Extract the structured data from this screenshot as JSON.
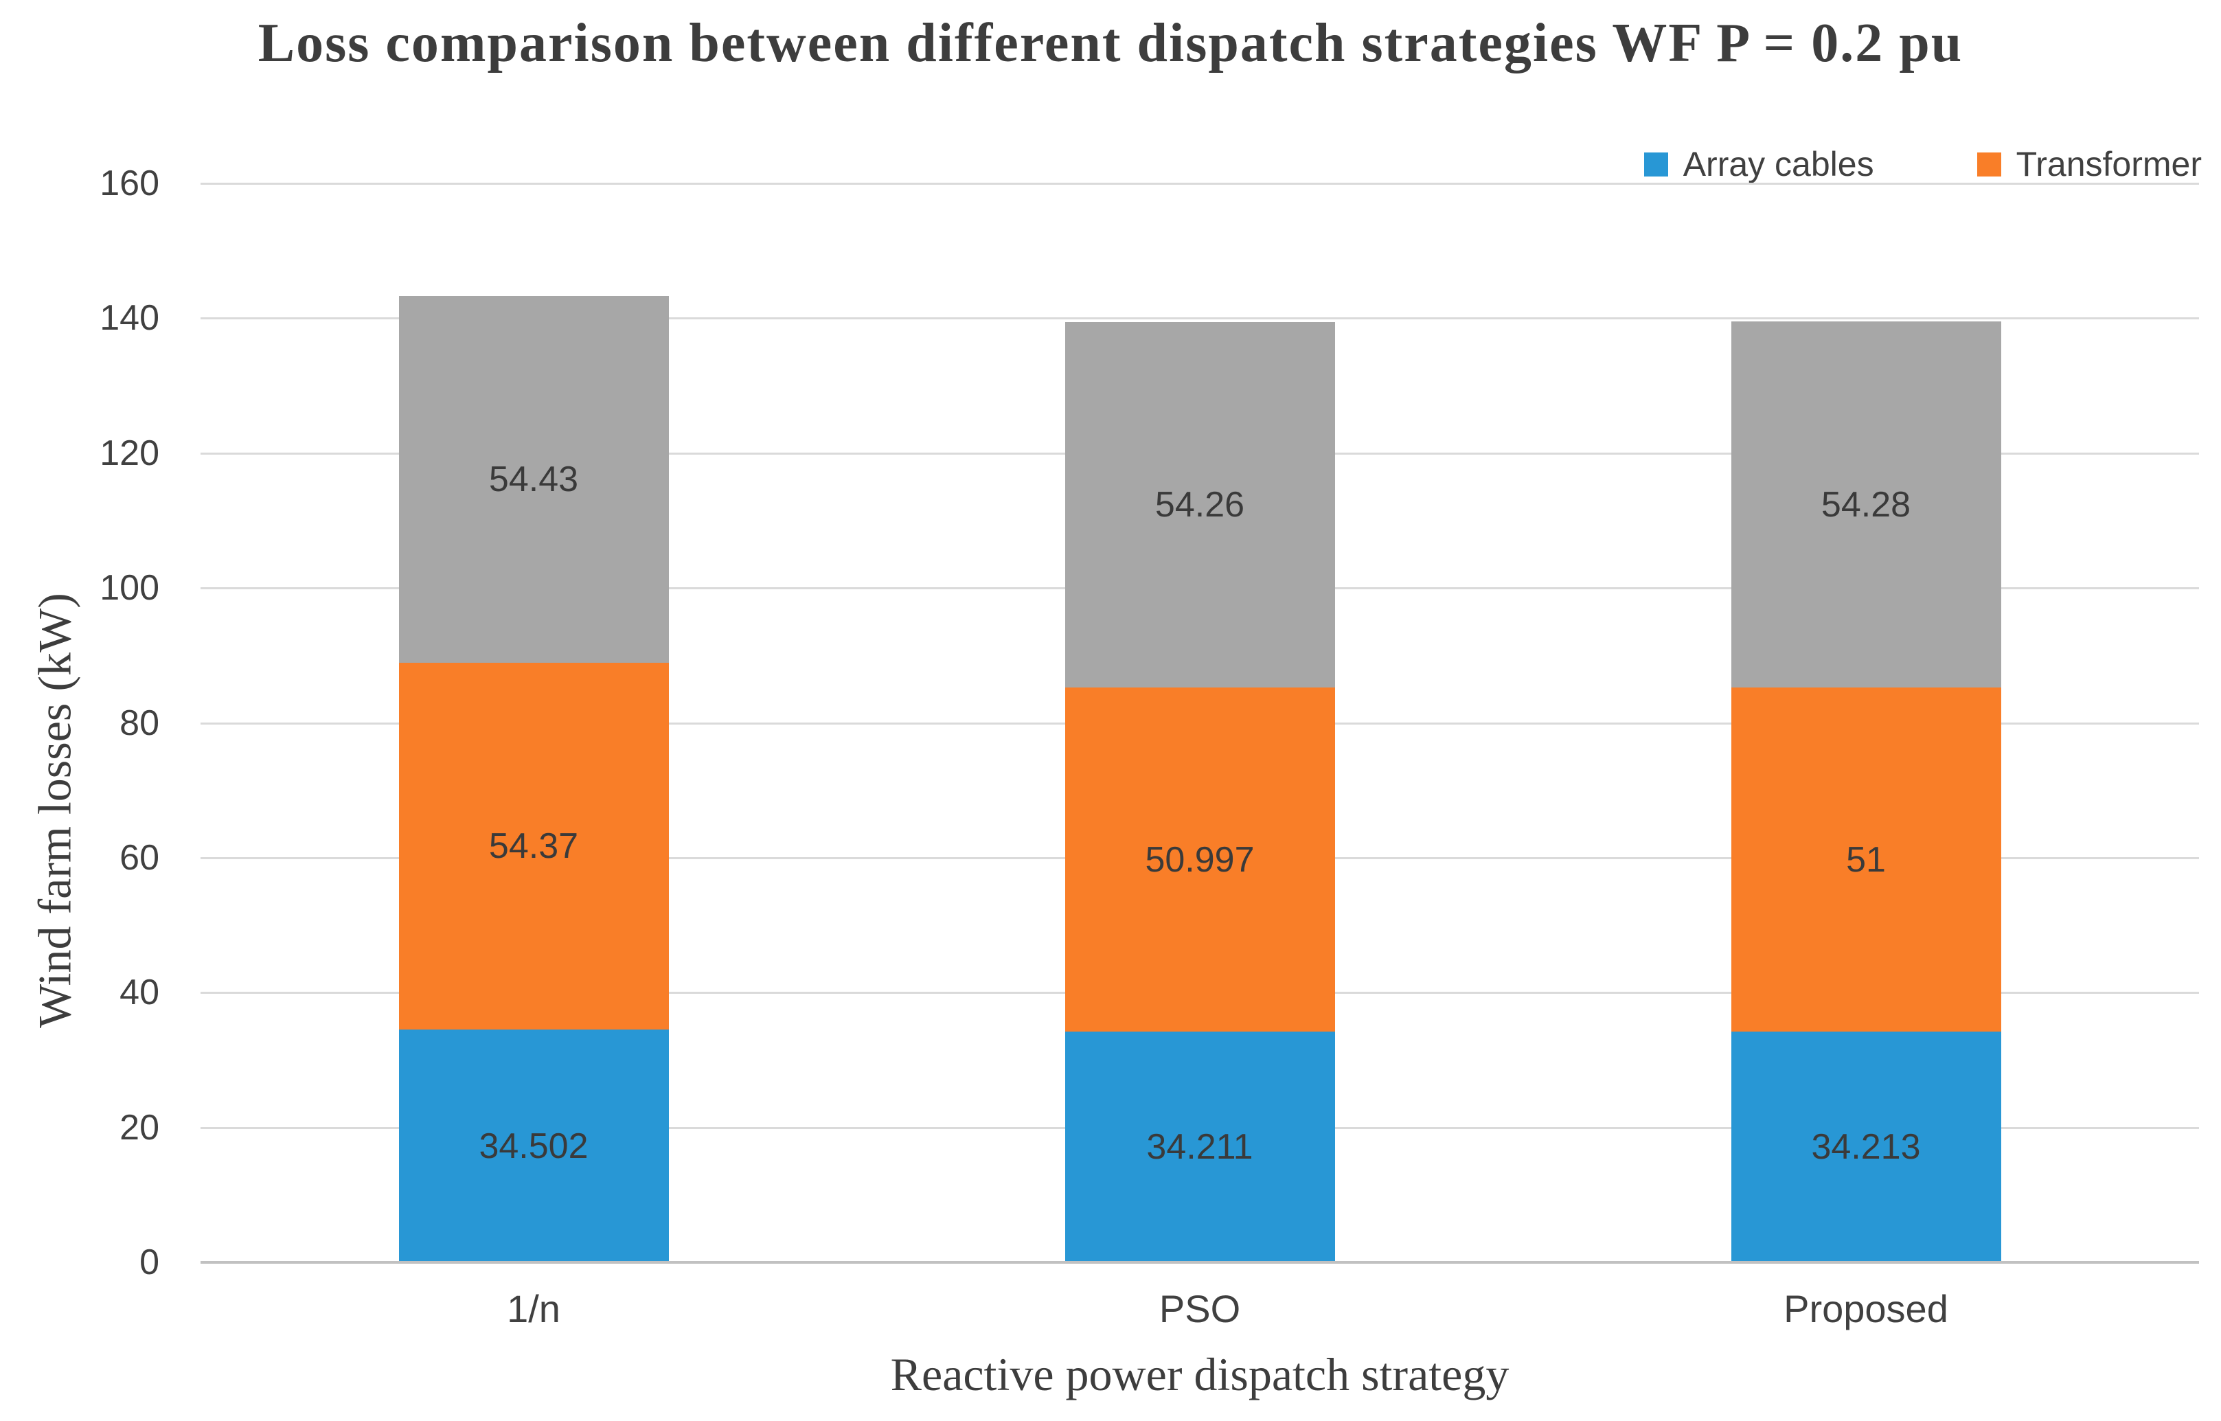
{
  "chart_data": {
    "type": "bar",
    "stacked": true,
    "title": "Loss comparison between different dispatch strategies WF P = 0.2 pu",
    "xlabel": "Reactive power dispatch strategy",
    "ylabel": "Wind farm losses (kW)",
    "categories": [
      "1/n",
      "PSO",
      "Proposed"
    ],
    "series": [
      {
        "name": "Array cables",
        "color": "#2897d5",
        "in_legend": true,
        "values": [
          34.502,
          34.211,
          34.213
        ]
      },
      {
        "name": "Transformer",
        "color": "#f97e28",
        "in_legend": true,
        "values": [
          54.37,
          50.997,
          51
        ]
      },
      {
        "name": "",
        "color": "#a7a7a7",
        "in_legend": false,
        "values": [
          54.43,
          54.26,
          54.28
        ]
      }
    ],
    "data_labels_visible": true,
    "ylim": [
      0,
      160
    ],
    "ytick_step": 20,
    "yticks": [
      0,
      20,
      40,
      60,
      80,
      100,
      120,
      140,
      160
    ],
    "grid": true,
    "legend_position": "top-right",
    "colors": {
      "grid": "#dadada",
      "axis_line": "#c1c1c1",
      "text": "#404040",
      "title": "#3d3d3d"
    }
  }
}
